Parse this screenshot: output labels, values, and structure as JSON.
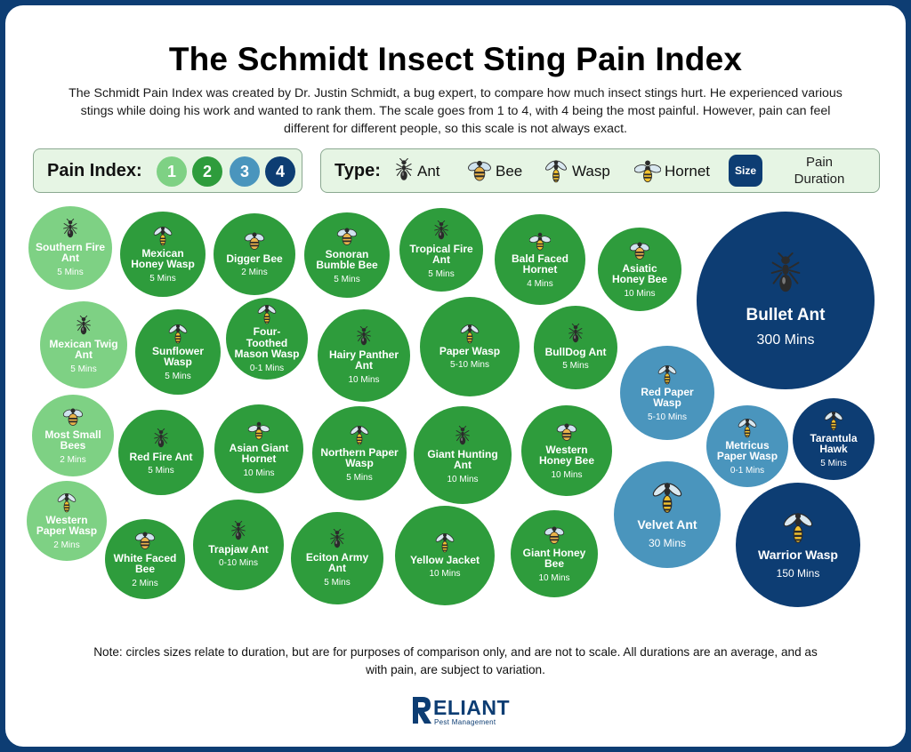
{
  "title": "The Schmidt Insect Sting Pain Index",
  "intro": "The Schmidt Pain Index was created by Dr. Justin Schmidt, a bug expert, to compare how much insect stings hurt. He experienced various stings while doing his work and wanted to rank them. The scale goes from 1 to 4, with 4 being the most painful. However, pain can feel different for different people, so this scale is not always exact.",
  "legend": {
    "pain_title": "Pain Index:",
    "levels": [
      {
        "label": "1",
        "color": "#7ed184"
      },
      {
        "label": "2",
        "color": "#2e9c3c"
      },
      {
        "label": "3",
        "color": "#4a95bd"
      },
      {
        "label": "4",
        "color": "#0d3d73"
      }
    ],
    "type_title": "Type:",
    "types": [
      {
        "label": "Ant",
        "icon": "ant-icon"
      },
      {
        "label": "Bee",
        "icon": "bee-icon"
      },
      {
        "label": "Wasp",
        "icon": "wasp-icon"
      },
      {
        "label": "Hornet",
        "icon": "hornet-icon"
      }
    ],
    "size_chip": "Size",
    "size_caption_1": "Pain",
    "size_caption_2": "Duration"
  },
  "insects": [
    {
      "name": "Southern Fire Ant",
      "duration": "5 Mins",
      "level": 1,
      "type": "ant"
    },
    {
      "name": "Mexican Honey Wasp",
      "duration": "5 Mins",
      "level": 2,
      "type": "wasp"
    },
    {
      "name": "Digger Bee",
      "duration": "2 Mins",
      "level": 2,
      "type": "bee"
    },
    {
      "name": "Sonoran Bumble Bee",
      "duration": "5 Mins",
      "level": 2,
      "type": "bee"
    },
    {
      "name": "Tropical Fire Ant",
      "duration": "5 Mins",
      "level": 2,
      "type": "ant"
    },
    {
      "name": "Bald Faced Hornet",
      "duration": "4 Mins",
      "level": 2,
      "type": "hornet"
    },
    {
      "name": "Asiatic Honey Bee",
      "duration": "10 Mins",
      "level": 2,
      "type": "bee"
    },
    {
      "name": "Bullet Ant",
      "duration": "300 Mins",
      "level": 4,
      "type": "ant"
    },
    {
      "name": "Mexican Twig Ant",
      "duration": "5 Mins",
      "level": 1,
      "type": "ant"
    },
    {
      "name": "Sunflower Wasp",
      "duration": "5 Mins",
      "level": 2,
      "type": "wasp"
    },
    {
      "name": "Four-Toothed Mason Wasp",
      "duration": "0-1 Mins",
      "level": 2,
      "type": "wasp"
    },
    {
      "name": "Hairy Panther Ant",
      "duration": "10 Mins",
      "level": 2,
      "type": "ant"
    },
    {
      "name": "Paper Wasp",
      "duration": "5-10 Mins",
      "level": 2,
      "type": "wasp"
    },
    {
      "name": "BullDog Ant",
      "duration": "5 Mins",
      "level": 2,
      "type": "ant"
    },
    {
      "name": "Red Paper Wasp",
      "duration": "5-10 Mins",
      "level": 3,
      "type": "wasp"
    },
    {
      "name": "Most Small Bees",
      "duration": "2 Mins",
      "level": 1,
      "type": "bee"
    },
    {
      "name": "Red Fire Ant",
      "duration": "5 Mins",
      "level": 2,
      "type": "ant"
    },
    {
      "name": "Asian Giant Hornet",
      "duration": "10 Mins",
      "level": 2,
      "type": "hornet"
    },
    {
      "name": "Northern Paper Wasp",
      "duration": "5 Mins",
      "level": 2,
      "type": "wasp"
    },
    {
      "name": "Giant Hunting Ant",
      "duration": "10 Mins",
      "level": 2,
      "type": "ant"
    },
    {
      "name": "Western Honey Bee",
      "duration": "10 Mins",
      "level": 2,
      "type": "bee"
    },
    {
      "name": "Metricus Paper Wasp",
      "duration": "0-1 Mins",
      "level": 3,
      "type": "wasp"
    },
    {
      "name": "Tarantula Hawk",
      "duration": "5 Mins",
      "level": 4,
      "type": "wasp"
    },
    {
      "name": "Western Paper Wasp",
      "duration": "2 Mins",
      "level": 1,
      "type": "wasp"
    },
    {
      "name": "White Faced Bee",
      "duration": "2 Mins",
      "level": 2,
      "type": "bee"
    },
    {
      "name": "Trapjaw Ant",
      "duration": "0-10 Mins",
      "level": 2,
      "type": "ant"
    },
    {
      "name": "Eciton Army Ant",
      "duration": "5 Mins",
      "level": 2,
      "type": "ant"
    },
    {
      "name": "Yellow Jacket",
      "duration": "10 Mins",
      "level": 2,
      "type": "wasp"
    },
    {
      "name": "Giant Honey Bee",
      "duration": "10 Mins",
      "level": 2,
      "type": "bee"
    },
    {
      "name": "Velvet Ant",
      "duration": "30 Mins",
      "level": 3,
      "type": "wasp"
    },
    {
      "name": "Warrior Wasp",
      "duration": "150 Mins",
      "level": 4,
      "type": "wasp"
    }
  ],
  "note": "Note: circles sizes relate to duration, but are for purposes of comparison only, and are not to scale. All durations are an average, and as with pain, are subject to variation.",
  "logo": {
    "word": "ELIANT",
    "sub": "Pest Management"
  }
}
